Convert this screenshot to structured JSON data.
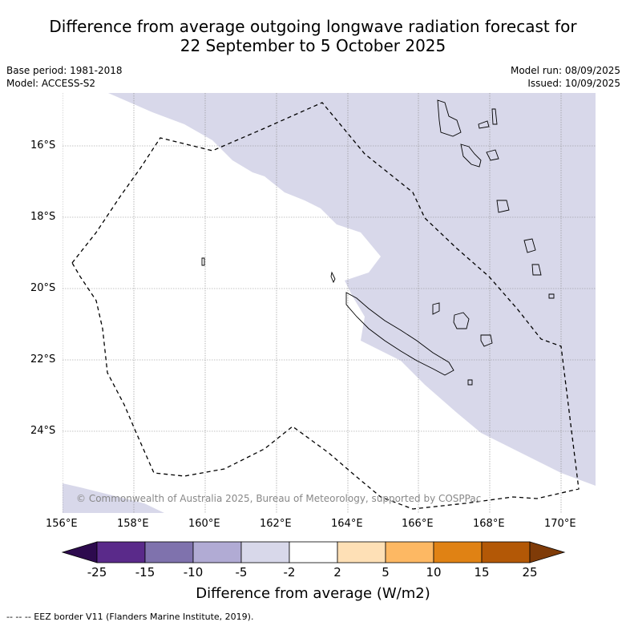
{
  "title": {
    "line1": "Difference from average outgoing longwave radiation forecast for",
    "line2": "22 September to 5 October 2025"
  },
  "meta": {
    "base_period": "Base period: 1981-2018",
    "model": "Model: ACCESS-S2",
    "model_run": "Model run: 08/09/2025",
    "issued": "Issued: 10/09/2025"
  },
  "map": {
    "lon_ticks": [
      "156°E",
      "158°E",
      "160°E",
      "162°E",
      "164°E",
      "166°E",
      "168°E",
      "170°E"
    ],
    "lat_ticks": [
      "16°S",
      "18°S",
      "20°S",
      "22°S",
      "24°S"
    ],
    "copyright": "© Commonwealth of Australia 2025, Bureau of Meteorology, supported by COSPPac",
    "anomaly_fill_color": "#d8d8ea",
    "land_outline_color": "#000000"
  },
  "colorbar": {
    "ticks": [
      "-25",
      "-15",
      "-10",
      "-5",
      "-2",
      "2",
      "5",
      "10",
      "15",
      "25"
    ],
    "colors": [
      "#2d0a4e",
      "#5a2a8a",
      "#7f72ad",
      "#b1abd4",
      "#d8d8ea",
      "#ffffff",
      "#fee0b6",
      "#fdb863",
      "#e08214",
      "#b35806",
      "#7f3b08"
    ],
    "label": "Difference from average (W/m2)"
  },
  "footnote": "-- -- -- EEZ border V11 (Flanders Marine Institute, 2019)."
}
